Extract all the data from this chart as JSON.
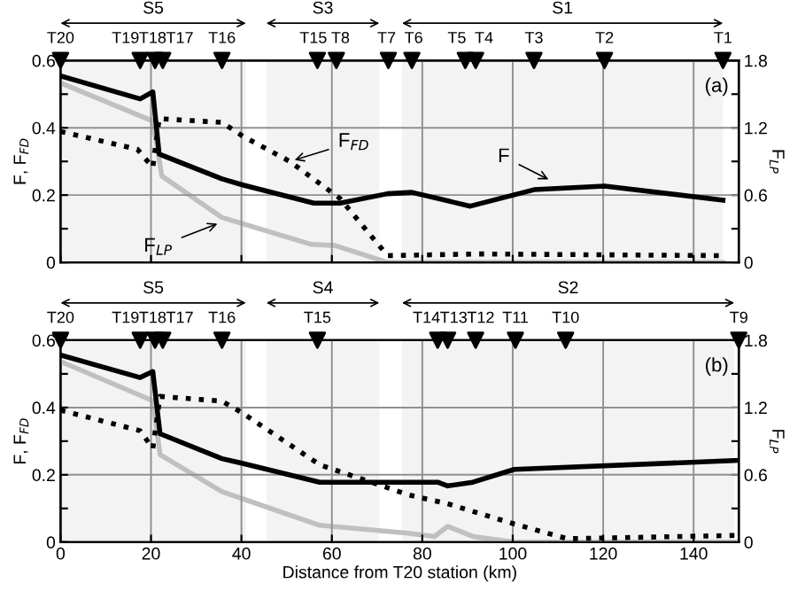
{
  "chart_data": [
    {
      "type": "line",
      "annotations": [
        {
          "text": "F$_{FD}$",
          "x": 50.7,
          "y": 0.3
        },
        {
          "text": "F$_{LP}$",
          "x": 35.7,
          "y": 0.12
        },
        {
          "text": "F",
          "x": 108.9,
          "y": 0.24
        },
        "(a)"
      ],
      "ylabel": "F, F$_{FD}$",
      "y2label": "F$_{LP}$",
      "xlim": [
        0,
        150
      ],
      "xticks": [
        0,
        20,
        40,
        60,
        80,
        100,
        120,
        140
      ],
      "ylim": [
        0,
        0.6
      ],
      "yticks": [
        0,
        {
          "value": 0.1,
          "label": null
        },
        0.2,
        {
          "value": 0.3,
          "label": null
        },
        0.4,
        {
          "value": 0.5,
          "label": null
        },
        0.6
      ],
      "y2lim": [
        0,
        1.8
      ],
      "y2ticks": [
        0,
        {
          "value": 0.3,
          "label": null
        },
        0.6,
        {
          "value": 0.9,
          "label": null
        },
        1.2,
        {
          "value": 1.5,
          "label": null
        },
        1.8
      ],
      "grid": true,
      "tick_labels": "y",
      "bands": [
        {
          "axis": "x",
          "from": 0,
          "to": 41,
          "label": "S5"
        },
        {
          "axis": "x",
          "from": 45.5,
          "to": 70.5,
          "label": "S3"
        },
        {
          "axis": "x",
          "from": 75.5,
          "to": 146.5,
          "label": "S1"
        }
      ],
      "series": [
        {
          "color": "#000000",
          "line_style": "solid",
          "x": [
            0,
            17.6,
            20.4,
            21.8,
            35.7,
            40.3,
            56,
            61.8,
            72.3,
            77.7,
            90.6,
            104.7,
            120.3,
            146.5
          ],
          "values": [
            0.554,
            0.486,
            0.507,
            0.322,
            0.248,
            0.23,
            0.176,
            0.176,
            0.204,
            0.208,
            0.167,
            0.216,
            0.227,
            0.185
          ]
        },
        {
          "color": "#000000",
          "line_style": "dotted",
          "x": [
            0,
            17,
            20.4,
            21.8,
            35.7,
            40.3,
            50.7,
            61.8,
            72.3,
            92.5,
            146.5
          ],
          "values": [
            0.389,
            0.336,
            0.282,
            0.427,
            0.416,
            0.375,
            0.3,
            0.19,
            0.02,
            0.025,
            0.02
          ]
        },
        {
          "axis": "y2",
          "color": "#c0c0c0",
          "line_style": "solid",
          "x": [
            0,
            20.4,
            22.4,
            35.7,
            55.5,
            60.7,
            72.3,
            146.5
          ],
          "values": [
            1.6,
            1.26,
            0.77,
            0.4,
            0.16,
            0.15,
            0,
            0
          ]
        },
        {
          "type": "scatter",
          "marker": "triangle",
          "color": "#000000",
          "x": [
            0,
            17.6,
            20.9,
            22.6,
            35.7,
            56.8,
            61,
            72.5,
            77.7,
            89.5,
            91.8,
            104.7,
            120.3,
            146.5
          ],
          "values": [
            0.6,
            0.6,
            0.6,
            0.6,
            0.6,
            0.6,
            0.6,
            0.6,
            0.6,
            0.6,
            0.6,
            0.6,
            0.6,
            0.6
          ],
          "value_labels": [
            "T20",
            "T19",
            "T18",
            "T17",
            "T16",
            "T15",
            "T8",
            "T7",
            "T6",
            "T5",
            "T4",
            "T3",
            "T2",
            "T1"
          ]
        }
      ]
    },
    {
      "type": "line",
      "annotations": [
        "(b)"
      ],
      "xlabel": "Distance from T20 station (km)",
      "ylabel": "F, F$_{FD}$",
      "y2label": "F$_{LP}$",
      "xlim": [
        0,
        150
      ],
      "xticks": [
        0,
        20,
        40,
        60,
        80,
        100,
        120,
        140
      ],
      "ylim": [
        0,
        0.6
      ],
      "yticks": [
        0,
        {
          "value": 0.1,
          "label": null
        },
        0.2,
        {
          "value": 0.3,
          "label": null
        },
        0.4,
        {
          "value": 0.5,
          "label": null
        },
        0.6
      ],
      "y2lim": [
        0,
        1.8
      ],
      "y2ticks": [
        0,
        {
          "value": 0.3,
          "label": null
        },
        0.6,
        {
          "value": 0.9,
          "label": null
        },
        1.2,
        {
          "value": 1.5,
          "label": null
        },
        1.8
      ],
      "grid": true,
      "bands": [
        {
          "axis": "x",
          "from": 0,
          "to": 41,
          "label": "S5"
        },
        {
          "axis": "x",
          "from": 45.5,
          "to": 70.5,
          "label": "S4"
        },
        {
          "axis": "x",
          "from": 75.5,
          "to": 149,
          "label": "S2"
        }
      ],
      "series": [
        {
          "color": "#000000",
          "line_style": "solid",
          "x": [
            0,
            17.6,
            20.4,
            22,
            35.7,
            40.3,
            57.3,
            83.4,
            85.6,
            91.2,
            100.3,
            150
          ],
          "values": [
            0.556,
            0.489,
            0.507,
            0.322,
            0.248,
            0.234,
            0.178,
            0.178,
            0.167,
            0.178,
            0.216,
            0.243
          ]
        },
        {
          "color": "#000000",
          "line_style": "dotted",
          "x": [
            0,
            17.6,
            20.4,
            22,
            35.7,
            40.3,
            57.3,
            76.8,
            85.6,
            100.3,
            112.1,
            150
          ],
          "values": [
            0.392,
            0.331,
            0.278,
            0.433,
            0.419,
            0.383,
            0.23,
            0.141,
            0.114,
            0.054,
            0.01,
            0.02
          ]
        },
        {
          "axis": "y2",
          "color": "#c0c0c0",
          "line_style": "solid",
          "x": [
            0,
            20.4,
            22,
            35.7,
            57.3,
            76.8,
            82.7,
            85.6,
            91.2,
            100.3,
            150
          ],
          "values": [
            1.61,
            1.26,
            0.78,
            0.45,
            0.15,
            0.08,
            0.05,
            0.14,
            0.05,
            0,
            0
          ]
        },
        {
          "type": "scatter",
          "marker": "triangle",
          "color": "#000000",
          "x": [
            0,
            17.6,
            20.9,
            22.6,
            35.7,
            56.8,
            83.4,
            85.6,
            91.8,
            100.6,
            111.7,
            150
          ],
          "values": [
            0.6,
            0.6,
            0.6,
            0.6,
            0.6,
            0.6,
            0.6,
            0.6,
            0.6,
            0.6,
            0.6,
            0.6
          ],
          "value_labels": [
            "T20",
            "T19",
            "T18",
            "T17",
            "T16",
            "T15",
            "T14",
            "T13",
            "T12",
            "T11",
            "T10",
            "T9"
          ]
        }
      ]
    }
  ]
}
